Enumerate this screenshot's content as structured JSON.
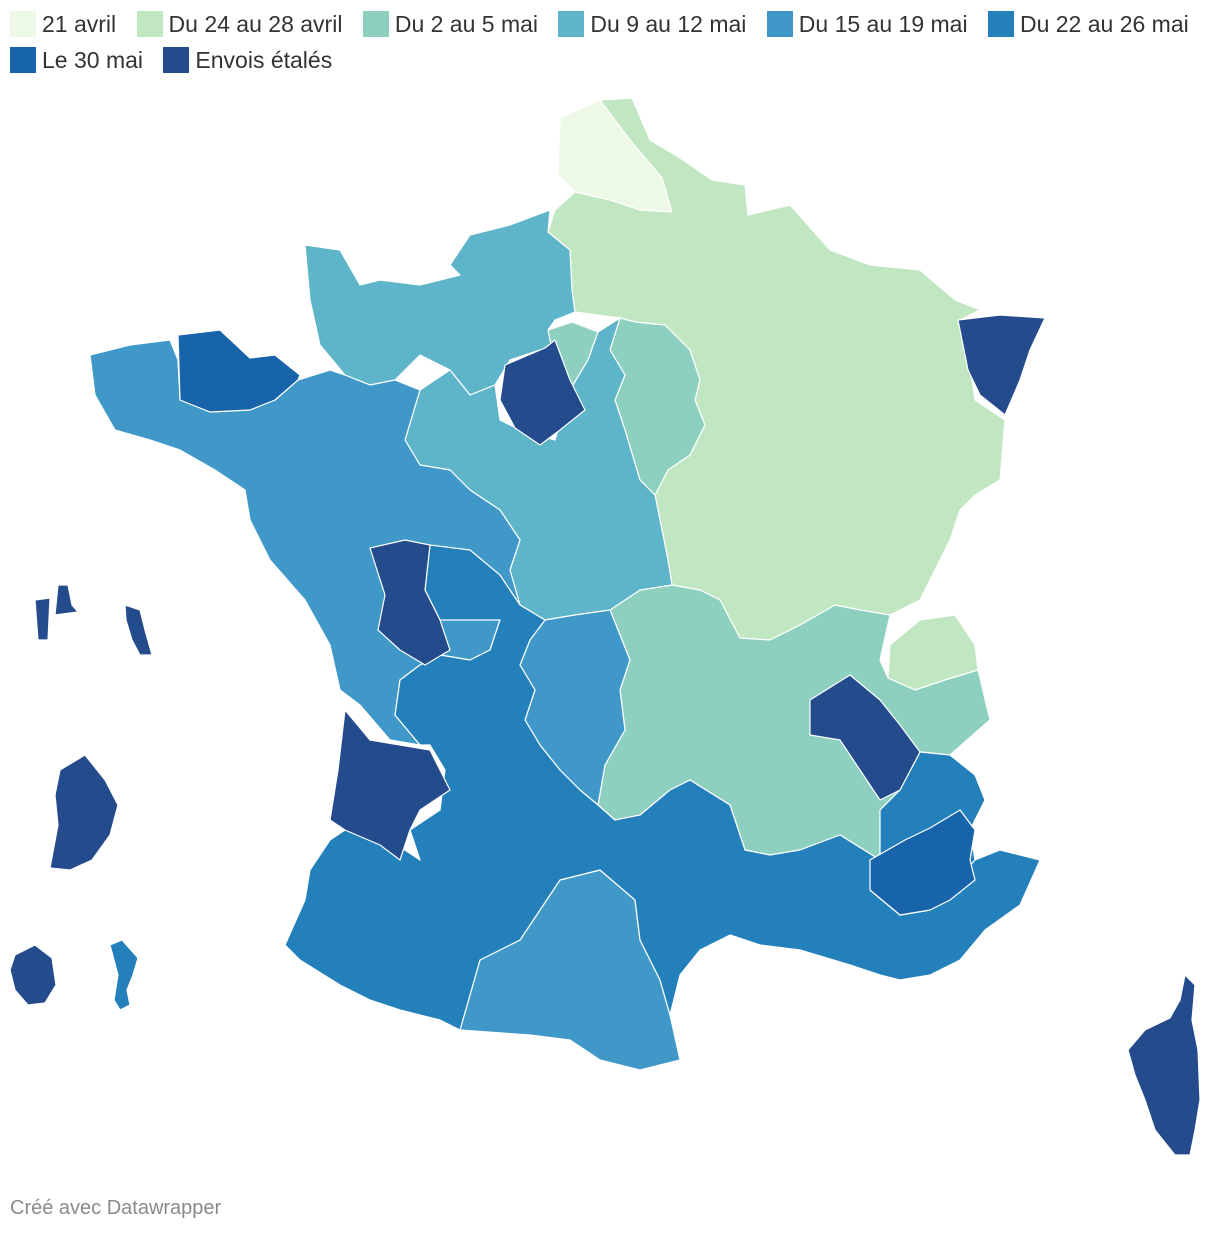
{
  "legend": [
    {
      "label": "21 avril",
      "color": "#eef8e6"
    },
    {
      "label": "Du 24 au 28 avril",
      "color": "#c0e6c2"
    },
    {
      "label": "Du 2 au 5 mai",
      "color": "#8dd0c0"
    },
    {
      "label": "Du 9 au 12 mai",
      "color": "#5eb4c8"
    },
    {
      "label": "Du 15 au 19 mai",
      "color": "#3f98c8"
    },
    {
      "label": "Du 22 au 26 mai",
      "color": "#2480ba"
    },
    {
      "label": "Le 30 mai",
      "color": "#1864aa"
    },
    {
      "label": "Envois étalés",
      "color": "#244b8c"
    }
  ],
  "footer": "Créé avec Datawrapper"
}
